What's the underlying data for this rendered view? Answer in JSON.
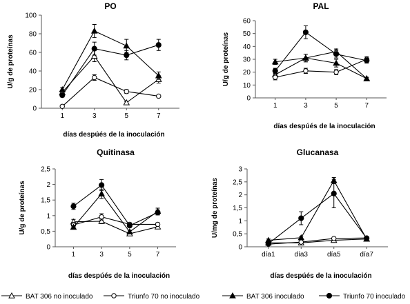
{
  "legend": [
    {
      "name": "BAT 306 no inoculado",
      "marker": "open-triangle"
    },
    {
      "name": "Triunfo 70 no inoculado",
      "marker": "open-circle"
    },
    {
      "name": "BAT 306 inoculado",
      "marker": "filled-triangle"
    },
    {
      "name": "Triunfo 70 inoculado",
      "marker": "filled-circle"
    }
  ],
  "chart_data": [
    {
      "type": "line",
      "title": "PO",
      "xlabel": "días despúés de la inoculación",
      "ylabel": "U/g de proteínas",
      "categories": [
        "1",
        "3",
        "5",
        "7"
      ],
      "ylim": [
        0,
        100
      ],
      "yticks": [
        "0",
        "20",
        "40",
        "60",
        "80",
        "100"
      ],
      "grid": false,
      "series": [
        {
          "name": "BAT 306 no inoculado",
          "values": [
            17,
            56,
            6,
            31
          ],
          "err": [
            2,
            6,
            1,
            4
          ]
        },
        {
          "name": "Triunfo 70 no inoculado",
          "values": [
            2,
            33,
            18,
            13
          ],
          "err": [
            1,
            3,
            2,
            1
          ]
        },
        {
          "name": "BAT 306 inoculado",
          "values": [
            20,
            83,
            67,
            35
          ],
          "err": [
            2,
            7,
            7,
            4
          ]
        },
        {
          "name": "Triunfo 70 inoculado",
          "values": [
            14,
            64,
            57,
            68
          ],
          "err": [
            2,
            7,
            5,
            6
          ]
        }
      ]
    },
    {
      "type": "line",
      "title": "PAL",
      "xlabel": "días despúés de la inoculación",
      "ylabel": "U/g de proteínas",
      "categories": [
        "1",
        "3",
        "5",
        "7"
      ],
      "ylim": [
        0,
        60
      ],
      "yticks": [
        "0",
        "10",
        "20",
        "30",
        "40",
        "50",
        "60"
      ],
      "grid": false,
      "series": [
        {
          "name": "BAT 306 no inoculado",
          "values": [
            18,
            31,
            36,
            15
          ],
          "err": [
            2,
            3,
            2,
            1
          ]
        },
        {
          "name": "Triunfo 70 no inoculado",
          "values": [
            16,
            21,
            20,
            30
          ],
          "err": [
            2,
            2,
            2,
            2
          ]
        },
        {
          "name": "BAT 306 inoculado",
          "values": [
            28,
            31,
            27,
            15
          ],
          "err": [
            2,
            3,
            3,
            1
          ]
        },
        {
          "name": "Triunfo 70 inoculado",
          "values": [
            21,
            51,
            34,
            29
          ],
          "err": [
            2,
            5,
            3,
            2
          ]
        }
      ]
    },
    {
      "type": "line",
      "title": "Quitinasa",
      "xlabel": "días despúés de la inoculación",
      "ylabel": "U/g de proteínas",
      "categories": [
        "1",
        "3",
        "5",
        "7"
      ],
      "ylim": [
        0,
        2.5
      ],
      "yticks": [
        "0",
        "0,5",
        "1",
        "1,5",
        "2",
        "2,5"
      ],
      "grid": false,
      "series": [
        {
          "name": "BAT 306 no inoculado",
          "values": [
            0.8,
            0.82,
            0.42,
            0.64
          ],
          "err": [
            0.08,
            0.08,
            0.05,
            0.05
          ]
        },
        {
          "name": "Triunfo 70 no inoculado",
          "values": [
            0.7,
            0.96,
            0.72,
            0.72
          ],
          "err": [
            0.08,
            0.1,
            0.05,
            0.05
          ]
        },
        {
          "name": "BAT 306 inoculado",
          "values": [
            0.63,
            1.7,
            0.48,
            1.14
          ],
          "err": [
            0.06,
            0.15,
            0.05,
            0.1
          ]
        },
        {
          "name": "Triunfo 70 inoculado",
          "values": [
            1.3,
            1.98,
            0.68,
            1.1
          ],
          "err": [
            0.1,
            0.18,
            0.06,
            0.08
          ]
        }
      ]
    },
    {
      "type": "line",
      "title": "Glucanasa",
      "xlabel": "días despúés de la inoculación",
      "ylabel": "U/mg de proteínas",
      "categories": [
        "día1",
        "día3",
        "día5",
        "día7"
      ],
      "ylim": [
        0,
        3
      ],
      "yticks": [
        "0",
        "0,5",
        "1",
        "1,5",
        "2",
        "2,5",
        "3"
      ],
      "grid": false,
      "series": [
        {
          "name": "BAT 306 no inoculado",
          "values": [
            0.15,
            0.15,
            0.25,
            0.3
          ],
          "err": [
            0.03,
            0.03,
            0.05,
            0.03
          ]
        },
        {
          "name": "Triunfo 70 no inoculado",
          "values": [
            0.1,
            0.18,
            0.32,
            0.34
          ],
          "err": [
            0.03,
            0.03,
            0.05,
            0.03
          ]
        },
        {
          "name": "BAT 306 inoculado",
          "values": [
            0.25,
            0.35,
            2.55,
            0.3
          ],
          "err": [
            0.05,
            0.05,
            0.12,
            0.03
          ]
        },
        {
          "name": "Triunfo 70 inoculado",
          "values": [
            0.12,
            1.1,
            2.05,
            0.33
          ],
          "err": [
            0.05,
            0.25,
            0.55,
            0.03
          ]
        }
      ]
    }
  ]
}
